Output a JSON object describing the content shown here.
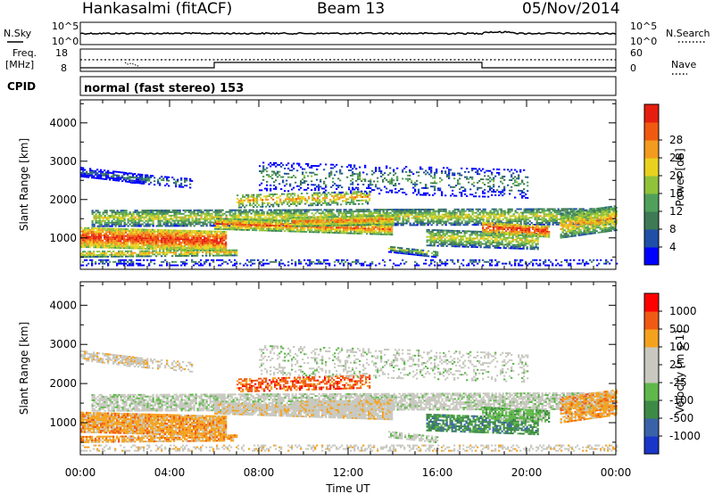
{
  "header": {
    "station": "Hankasalmi (fitACF)",
    "beam": "Beam 13",
    "date": "05/Nov/2014"
  },
  "strips": {
    "nsky_label": "N.Sky",
    "nsearch_label": "N.Search",
    "noise_ticks": [
      "10^5",
      "10^0"
    ],
    "freq_label_1": "Freq.",
    "freq_label_2": "[MHz]",
    "freq_ticks": [
      "18",
      "8"
    ],
    "nave_label": "Nave",
    "nave_ticks": [
      "60",
      "0"
    ],
    "cpid_label": "CPID",
    "cpid_text": "normal (fast stereo) 153"
  },
  "colors": {
    "power_scale": [
      "#0000ff",
      "#1f4fa6",
      "#3d7a55",
      "#4fa05a",
      "#90c23a",
      "#e8d21e",
      "#f29b1e",
      "#f05a10",
      "#e61e0f"
    ],
    "velocity_scale": [
      "#ff0000",
      "#f05a14",
      "#f4a21e",
      "#c8c8c0",
      "#c8c8c0",
      "#5fb84a",
      "#3d8a46",
      "#3a62a8",
      "#1a36c8"
    ]
  },
  "chart_data": {
    "type": "heatmap",
    "xlabel": "Time UT",
    "x_ticks": [
      "00:00",
      "04:00",
      "08:00",
      "12:00",
      "16:00",
      "20:00",
      "00:00"
    ],
    "xlim_hours": [
      0,
      24
    ],
    "ylabel": "Slant Range [km]",
    "y_ticks": [
      1000,
      2000,
      3000,
      4000
    ],
    "ylim_km": [
      180,
      4600
    ],
    "panels": [
      {
        "name": "Power",
        "colorbar_label": "Power [dB]",
        "colorbar_ticks": [
          "4",
          "8",
          "12",
          "16",
          "20",
          "24",
          "28"
        ]
      },
      {
        "name": "Velocity",
        "colorbar_label": "Velocity [m s-1]",
        "colorbar_ticks": [
          "1000",
          "500",
          "100",
          "25",
          "-25",
          "-100",
          "-500",
          "-1000"
        ]
      }
    ]
  }
}
